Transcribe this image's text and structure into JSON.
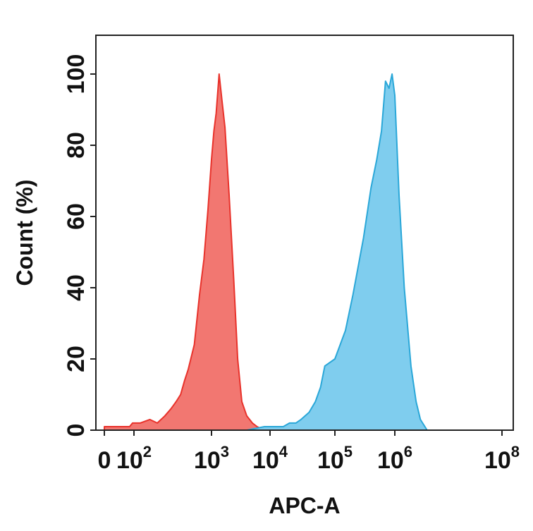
{
  "chart_data": {
    "type": "area",
    "xlabel": "APC-A",
    "ylabel": "Count (%)",
    "xscale": "biexponential",
    "x_tick_labels": [
      {
        "base": "0",
        "exp": ""
      },
      {
        "base": "10",
        "exp": "2"
      },
      {
        "base": "10",
        "exp": "3"
      },
      {
        "base": "10",
        "exp": "4"
      },
      {
        "base": "10",
        "exp": "5"
      },
      {
        "base": "10",
        "exp": "6"
      },
      {
        "base": "10",
        "exp": "8"
      }
    ],
    "x_tick_values": [
      0,
      100,
      1000,
      10000,
      100000,
      1000000,
      100000000
    ],
    "y_tick_labels": [
      "0",
      "20",
      "40",
      "60",
      "80",
      "100"
    ],
    "y_tick_values": [
      0,
      20,
      40,
      60,
      80,
      100
    ],
    "ylim": [
      0,
      100
    ],
    "grid": false,
    "series": [
      {
        "color": "#e8322b",
        "fill": "#f27771",
        "x": [
          0,
          20,
          50,
          80,
          120,
          160,
          200,
          250,
          300,
          350,
          400,
          450,
          500,
          600,
          700,
          800,
          900,
          1000,
          1100,
          1200,
          1350,
          1500,
          1700,
          2000,
          2400,
          2800,
          3300,
          4000,
          5000,
          6000,
          8000
        ],
        "y": [
          1,
          1,
          1,
          2,
          2,
          3,
          2,
          4,
          6,
          8,
          10,
          14,
          17,
          24,
          38,
          48,
          62,
          76,
          84,
          89,
          100,
          93,
          85,
          66,
          42,
          20,
          8,
          4,
          2,
          1,
          0
        ]
      },
      {
        "color": "#2aa7d8",
        "fill": "#7fcdee",
        "x": [
          2000,
          4000,
          8000,
          12000,
          16000,
          20000,
          25000,
          30000,
          40000,
          50000,
          60000,
          70000,
          100000,
          150000,
          200000,
          300000,
          400000,
          500000,
          600000,
          700000,
          800000,
          900000,
          1000000,
          1200000,
          1500000,
          2000000,
          2500000,
          3000000,
          4000000
        ],
        "y": [
          0,
          0,
          1,
          1,
          1,
          2,
          2,
          3,
          5,
          8,
          12,
          18,
          20,
          28,
          38,
          54,
          68,
          76,
          84,
          98,
          96,
          100,
          94,
          66,
          40,
          18,
          8,
          3,
          0
        ]
      }
    ]
  }
}
